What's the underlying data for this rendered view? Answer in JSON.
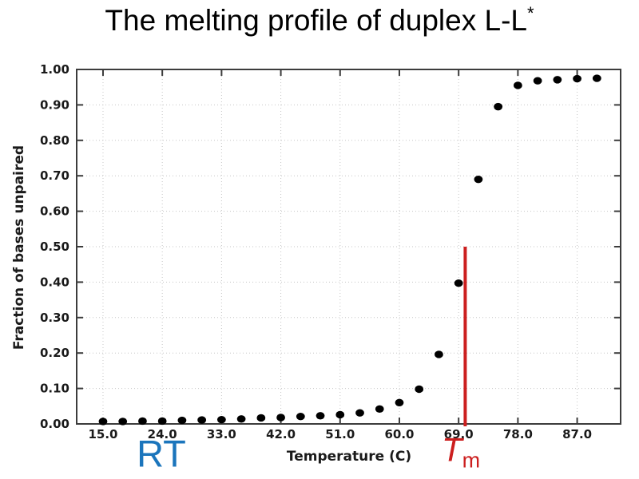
{
  "slide": {
    "title": "The melting profile of duplex L-L",
    "title_superscript": "*"
  },
  "chart_data": {
    "type": "scatter",
    "title": "The melting profile of duplex L-L*",
    "xlabel": "Temperature (C)",
    "ylabel": "Fraction of bases unpaired",
    "xlim": [
      11.0,
      93.6
    ],
    "ylim": [
      0.0,
      1.0
    ],
    "x_ticks": [
      15,
      24,
      33,
      42,
      51,
      60,
      69,
      78,
      87
    ],
    "x_tick_labels": [
      "15.0",
      "24.0",
      "33.0",
      "42.0",
      "51.0",
      "60.0",
      "69.0",
      "78.0",
      "87.0"
    ],
    "y_ticks": [
      0.0,
      0.1,
      0.2,
      0.3,
      0.4,
      0.5,
      0.6,
      0.7,
      0.8,
      0.9,
      1.0
    ],
    "y_tick_labels": [
      "0.00",
      "0.10",
      "0.20",
      "0.30",
      "0.40",
      "0.50",
      "0.60",
      "0.70",
      "0.80",
      "0.90",
      "1.00"
    ],
    "grid": "dotted",
    "legend": "none",
    "series": [
      {
        "name": "fraction-of-bases-unpaired",
        "marker": "filled-circle",
        "color": "#000000",
        "x": [
          15,
          18,
          21,
          24,
          27,
          30,
          33,
          36,
          39,
          42,
          45,
          48,
          51,
          54,
          57,
          60,
          63,
          66,
          69,
          72,
          75,
          78,
          81,
          84,
          87,
          90
        ],
        "y": [
          0.007,
          0.007,
          0.008,
          0.008,
          0.01,
          0.011,
          0.012,
          0.014,
          0.017,
          0.018,
          0.021,
          0.023,
          0.026,
          0.031,
          0.042,
          0.06,
          0.098,
          0.196,
          0.397,
          0.69,
          0.895,
          0.955,
          0.968,
          0.971,
          0.974,
          0.975
        ]
      }
    ],
    "tm_marker_line": {
      "x": 70.0,
      "y_from": 0.0,
      "y_to": 0.5,
      "color": "#cc1f1f"
    },
    "annotations": [
      {
        "text": "RT",
        "color": "#1b75bc",
        "x": 24
      },
      {
        "text": "T",
        "subscript": "m",
        "color": "#cc1f1f",
        "x": 70
      }
    ],
    "colors": {
      "frame": "#3c3c3c",
      "grid": "#c6c6c6",
      "tick_text": "#1a1a1a",
      "marker": "#000000",
      "tm_line": "#cc1f1f",
      "rt_text": "#1b75bc",
      "title_text": "#000000"
    }
  }
}
